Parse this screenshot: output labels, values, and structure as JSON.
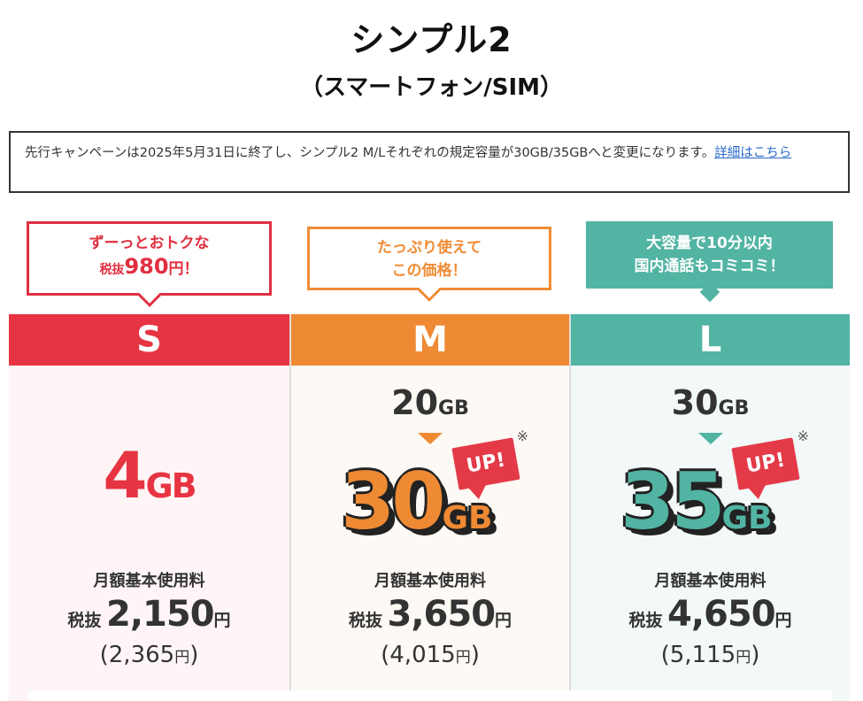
{
  "header": {
    "title": "シンプル2",
    "subtitle": "（スマートフォン/SIM）"
  },
  "notice": {
    "text": "先行キャンペーンは2025年5月31日に終了し、シンプル2 M/Lそれぞれの規定容量が30GB/35GBへと変更になります。",
    "link": "詳細はこちら"
  },
  "bubbles": {
    "s_line1": "ずーっとおトクな",
    "s_prefix": "税抜",
    "s_price": "980",
    "s_suffix": "円！",
    "m_line1": "たっぷり使えて",
    "m_line2": "この価格！",
    "l_line1": "大容量で10分以内",
    "l_line2": "国内通話もコミコミ！"
  },
  "plans": [
    {
      "name": "S",
      "capacity": "4",
      "unit": "GB",
      "fee_label": "月額基本使用料",
      "tax_ex_prefix": "税抜",
      "price": "2,150",
      "yen": "円",
      "tax_in_open": "(2,365",
      "tax_in_yen": "円",
      "tax_in_close": ")"
    },
    {
      "name": "M",
      "old_capacity": "20",
      "new_capacity": "30",
      "unit": "GB",
      "badge": "UP!",
      "note": "※",
      "fee_label": "月額基本使用料",
      "tax_ex_prefix": "税抜",
      "price": "3,650",
      "yen": "円",
      "tax_in_open": "(4,015",
      "tax_in_yen": "円",
      "tax_in_close": ")"
    },
    {
      "name": "L",
      "old_capacity": "30",
      "new_capacity": "35",
      "unit": "GB",
      "badge": "UP!",
      "note": "※",
      "fee_label": "月額基本使用料",
      "tax_ex_prefix": "税抜",
      "price": "4,650",
      "yen": "円",
      "tax_in_open": "(5,115",
      "tax_in_yen": "円",
      "tax_in_close": ")"
    }
  ],
  "colors": {
    "s": "#e73442",
    "m": "#ef8a34",
    "l": "#52b4a3",
    "link": "#2a6ac8"
  }
}
